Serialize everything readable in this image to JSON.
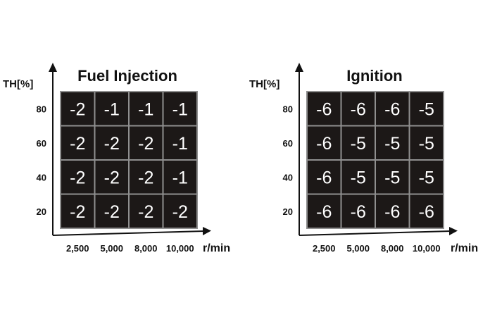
{
  "chart_data": [
    {
      "type": "heatmap",
      "title": "Fuel Injection",
      "ylabel": "TH[%]",
      "xlabel": "r/min",
      "x": [
        "2,500",
        "5,000",
        "8,000",
        "10,000"
      ],
      "y": [
        "80",
        "60",
        "40",
        "20"
      ],
      "values": [
        [
          -2,
          -1,
          -1,
          -1
        ],
        [
          -2,
          -2,
          -2,
          -1
        ],
        [
          -2,
          -2,
          -2,
          -1
        ],
        [
          -2,
          -2,
          -2,
          -2
        ]
      ]
    },
    {
      "type": "heatmap",
      "title": "Ignition",
      "ylabel": "TH[%]",
      "xlabel": "r/min",
      "x": [
        "2,500",
        "5,000",
        "8,000",
        "10,000"
      ],
      "y": [
        "80",
        "60",
        "40",
        "20"
      ],
      "values": [
        [
          -6,
          -6,
          -6,
          -5
        ],
        [
          -6,
          -5,
          -5,
          -5
        ],
        [
          -6,
          -5,
          -5,
          -5
        ],
        [
          -6,
          -6,
          -6,
          -6
        ]
      ]
    }
  ],
  "colors": {
    "cell": "#1c1817",
    "cell_border": "#8f8f8f",
    "text": "#111111",
    "cell_text": "#ffffff"
  }
}
